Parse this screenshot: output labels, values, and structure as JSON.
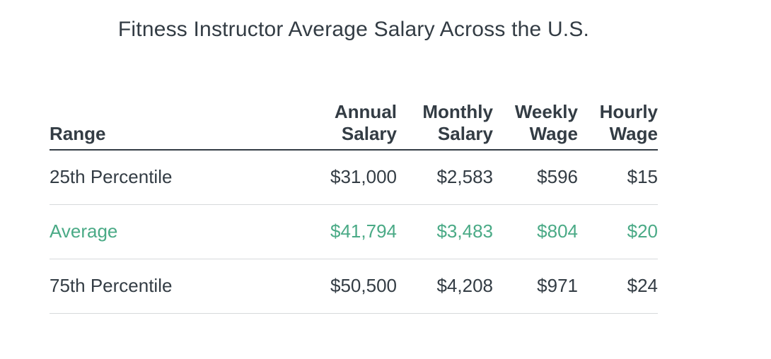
{
  "colors": {
    "text": "#333c44",
    "highlight_green": "#4aaa86",
    "header_border": "#333c44",
    "row_border": "#d6d9db"
  },
  "chart_data": {
    "type": "table",
    "title": "Fitness Instructor Average Salary Across the U.S.",
    "columns": [
      "Range",
      "Annual Salary",
      "Monthly Salary",
      "Weekly Wage",
      "Hourly Wage"
    ],
    "rows": [
      [
        "25th Percentile",
        "$31,000",
        "$2,583",
        "$596",
        "$15"
      ],
      [
        "Average",
        "$41,794",
        "$3,483",
        "$804",
        "$20"
      ],
      [
        "75th Percentile",
        "$50,500",
        "$4,208",
        "$971",
        "$24"
      ]
    ],
    "highlighted_row_index": 1,
    "highlight_meaning": "Average row rendered in green accent color",
    "layout": {
      "numeric_columns_align": "right",
      "range_column_align": "left",
      "header_underline": true,
      "row_separators": true,
      "title_position": "centered above table"
    }
  },
  "header_lines": [
    {
      "line1": "Range",
      "line2": ""
    },
    {
      "line1": "Annual",
      "line2": "Salary"
    },
    {
      "line1": "Monthly",
      "line2": "Salary"
    },
    {
      "line1": "Weekly",
      "line2": "Wage"
    },
    {
      "line1": "Hourly",
      "line2": "Wage"
    }
  ]
}
